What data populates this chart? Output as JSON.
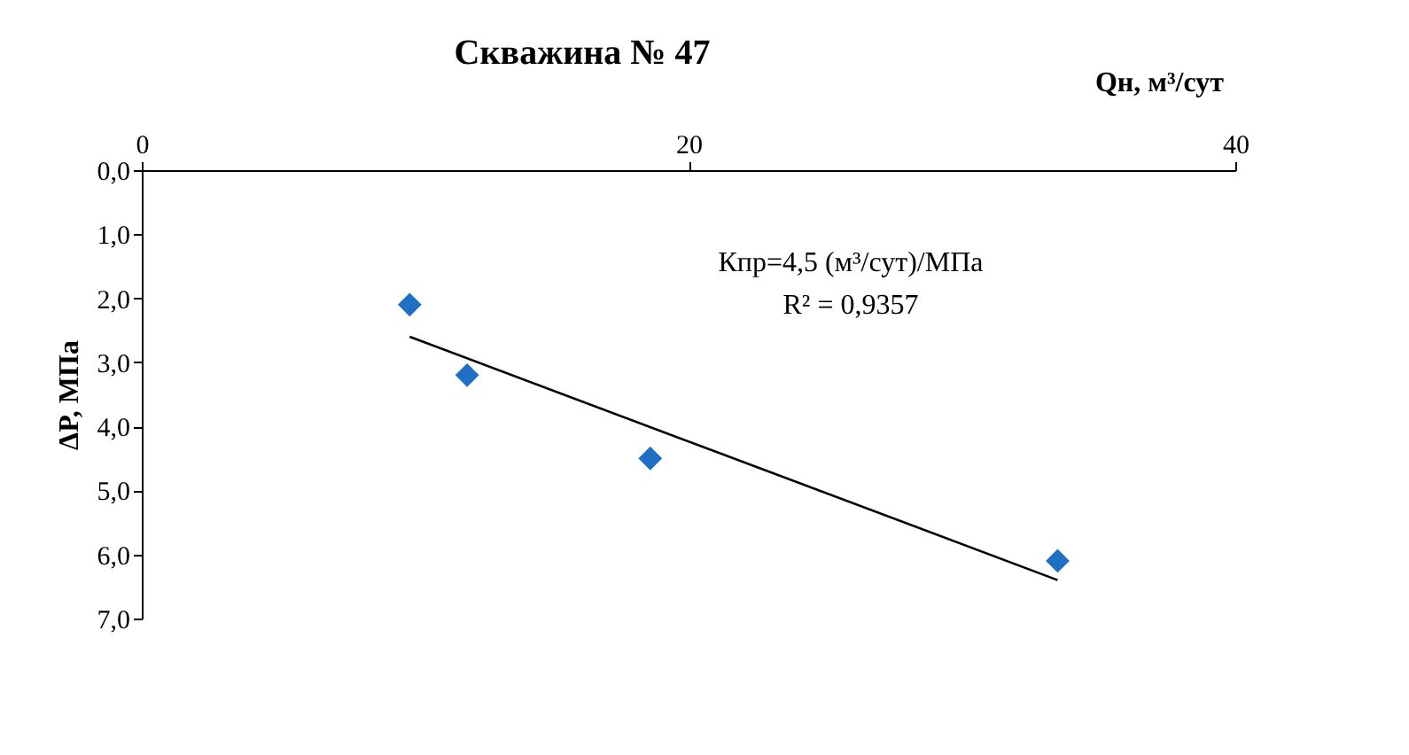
{
  "chart_data": {
    "type": "scatter",
    "title": "Скважина № 47",
    "xlabel": "Qн, м³/сут",
    "ylabel": "ΔP, МПа",
    "x": [
      9.8,
      11.9,
      18.6,
      33.5
    ],
    "series": [
      {
        "color": "#1f6fc5",
        "marker": "diamond",
        "values": [
          2.1,
          3.2,
          4.5,
          6.1
        ]
      },
      {
        "type": "line",
        "color": "#000000",
        "x": [
          9.8,
          33.5
        ],
        "values": [
          2.6,
          6.4
        ],
        "line_style": "solid"
      }
    ],
    "xlim": [
      0,
      40
    ],
    "xticks": [
      0,
      20,
      40
    ],
    "ylim": [
      7,
      0
    ],
    "yticks": [
      {
        "value": 0,
        "label": "0,0"
      },
      {
        "value": 1,
        "label": "1,0"
      },
      {
        "value": 2,
        "label": "2,0"
      },
      {
        "value": 3,
        "label": "3,0"
      },
      {
        "value": 4,
        "label": "4,0"
      },
      {
        "value": 5,
        "label": "5,0"
      },
      {
        "value": 6,
        "label": "6,0"
      },
      {
        "value": 7,
        "label": "7,0"
      }
    ],
    "annotations": [
      "Кпр=4,5  (м³/сут)/МПа",
      "R² = 0,9357"
    ],
    "grid": false,
    "legend": false
  }
}
